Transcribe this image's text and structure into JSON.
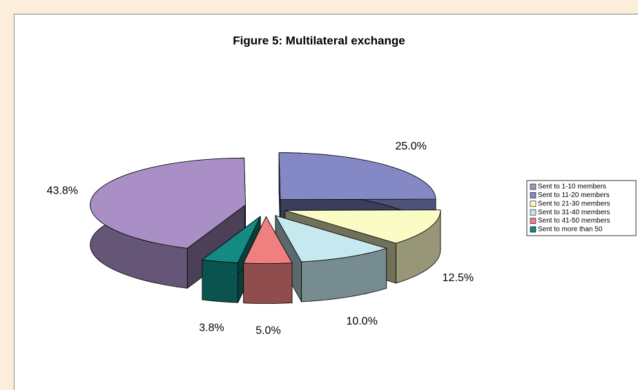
{
  "chart_data": {
    "type": "pie",
    "title": "Figure 5:  Multilateral exchange",
    "categories": [
      "Sent to 1-10 members",
      "Sent to 11-20 members",
      "Sent to 21-30 members",
      "Sent to 31-40 members",
      "Sent to 41-50 members",
      "Sent to more than 50"
    ],
    "values": [
      43.8,
      25.0,
      12.5,
      10.0,
      5.0,
      3.8
    ],
    "value_labels": [
      "43.8%",
      "25.0%",
      "12.5%",
      "10.0%",
      "5.0%",
      "3.8%"
    ],
    "colors": [
      "#a98fc6",
      "#8489c6",
      "#fbfbc6",
      "#c6e9f0",
      "#f08080",
      "#138a84"
    ],
    "legend": "right"
  }
}
